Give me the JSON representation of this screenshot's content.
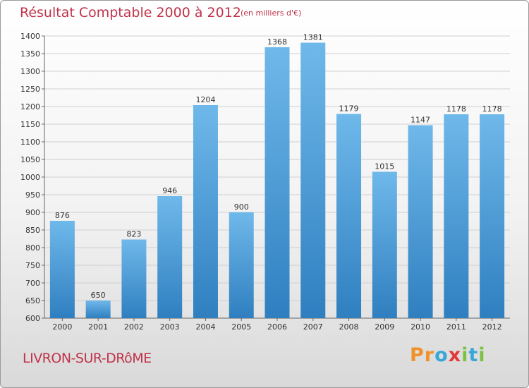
{
  "title": "Résultat Comptable 2000 à 2012",
  "subtitle": "(en milliers d'€)",
  "commune": "LIVRON-SUR-DRôME",
  "logo": {
    "letters": [
      "P",
      "r",
      "o",
      "x",
      "i",
      "t",
      "i"
    ],
    "colors": [
      "#f0922b",
      "#f0922b",
      "#3aa6d8",
      "#e23a3a",
      "#7cc242",
      "#3aa6d8",
      "#7cc242"
    ]
  },
  "colors": {
    "bar_light": "#6fb8ea",
    "bar_dark": "#2f7fc0",
    "accent": "#c0334a"
  },
  "chart_data": {
    "type": "bar",
    "title": "Résultat Comptable 2000 à 2012",
    "subtitle": "(en milliers d'€)",
    "xlabel": "",
    "ylabel": "",
    "categories": [
      "2000",
      "2001",
      "2002",
      "2003",
      "2004",
      "2005",
      "2006",
      "2007",
      "2008",
      "2009",
      "2010",
      "2011",
      "2012"
    ],
    "values": [
      876,
      650,
      823,
      946,
      1204,
      900,
      1368,
      1381,
      1179,
      1015,
      1147,
      1178,
      1178
    ],
    "ylim": [
      600,
      1400
    ],
    "yticks": [
      600,
      650,
      700,
      750,
      800,
      850,
      900,
      950,
      1000,
      1050,
      1100,
      1150,
      1200,
      1250,
      1300,
      1350,
      1400
    ],
    "grid": true,
    "legend": "none"
  }
}
